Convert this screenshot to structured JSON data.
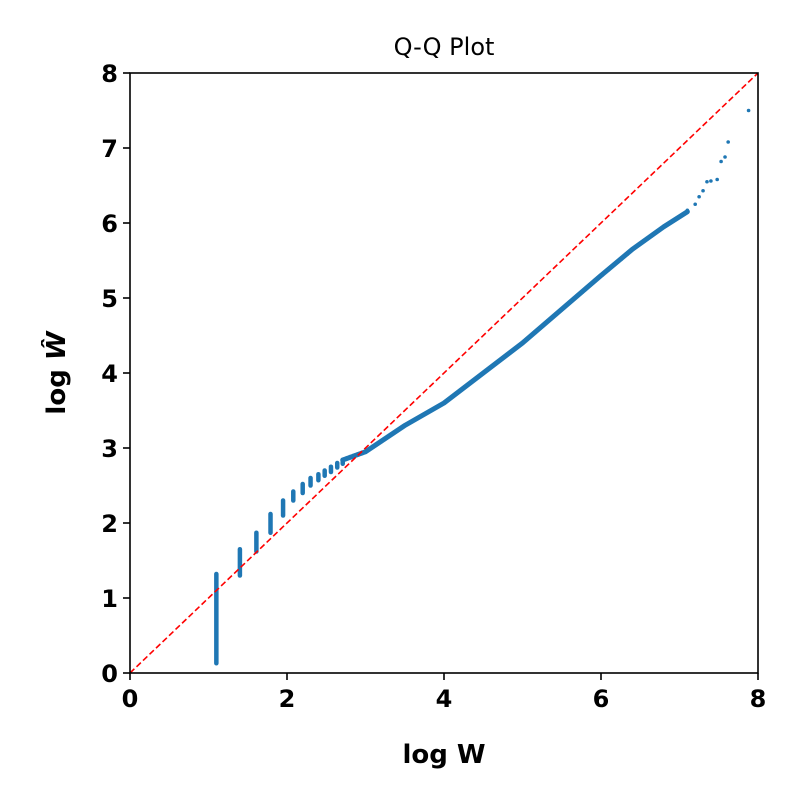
{
  "chart_data": {
    "type": "scatter",
    "title": "Q-Q Plot",
    "xlabel": "log W",
    "ylabel_prefix": "log ",
    "ylabel_var": "Ŵ",
    "xlim": [
      0,
      8
    ],
    "ylim": [
      0,
      8
    ],
    "xticks": [
      "0",
      "2",
      "4",
      "6",
      "8"
    ],
    "yticks": [
      "0",
      "1",
      "2",
      "3",
      "4",
      "5",
      "6",
      "7",
      "8"
    ],
    "grid": false,
    "legend": "none",
    "colors": {
      "points": "#1f77b4",
      "reference": "#ff0000",
      "axes": "#000000"
    },
    "reference_line": {
      "style": "dashed",
      "from": [
        0,
        0
      ],
      "to": [
        8,
        8
      ]
    },
    "vertical_bands": [
      {
        "x": 1.1,
        "ymin": 0.13,
        "ymax": 1.32
      },
      {
        "x": 1.4,
        "ymin": 1.3,
        "ymax": 1.65
      },
      {
        "x": 1.61,
        "ymin": 1.62,
        "ymax": 1.87
      },
      {
        "x": 1.79,
        "ymin": 1.87,
        "ymax": 2.12
      },
      {
        "x": 1.95,
        "ymin": 2.1,
        "ymax": 2.3
      },
      {
        "x": 2.08,
        "ymin": 2.3,
        "ymax": 2.42
      },
      {
        "x": 2.2,
        "ymin": 2.4,
        "ymax": 2.52
      },
      {
        "x": 2.3,
        "ymin": 2.5,
        "ymax": 2.6
      },
      {
        "x": 2.4,
        "ymin": 2.57,
        "ymax": 2.65
      },
      {
        "x": 2.48,
        "ymin": 2.63,
        "ymax": 2.7
      },
      {
        "x": 2.56,
        "ymin": 2.68,
        "ymax": 2.75
      },
      {
        "x": 2.64,
        "ymin": 2.74,
        "ymax": 2.8
      },
      {
        "x": 2.71,
        "ymin": 2.79,
        "ymax": 2.84
      }
    ],
    "curve": {
      "x": [
        2.71,
        3.0,
        3.5,
        4.0,
        4.5,
        5.0,
        5.5,
        6.0,
        6.4,
        6.8,
        7.1
      ],
      "y": [
        2.84,
        2.95,
        3.3,
        3.6,
        4.0,
        4.4,
        4.85,
        5.3,
        5.65,
        5.95,
        6.15
      ]
    },
    "tail_points": {
      "x": [
        7.1,
        7.2,
        7.25,
        7.3,
        7.35,
        7.4,
        7.48,
        7.53,
        7.58,
        7.62,
        7.88
      ],
      "y": [
        6.17,
        6.25,
        6.35,
        6.43,
        6.55,
        6.56,
        6.58,
        6.82,
        6.88,
        7.08,
        7.5
      ]
    }
  }
}
